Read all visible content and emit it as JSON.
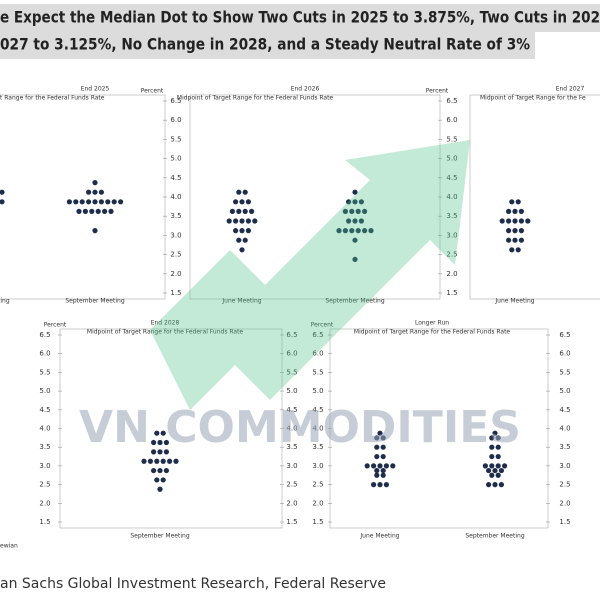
{
  "header": {
    "title_lines": [
      "e Expect the Median Dot to Show Two Cuts in 2025 to 3.875%, Two Cuts in 202",
      "027 to 3.125%, No Change in 2028, and a Steady Neutral Rate of 3%"
    ]
  },
  "watermark": "VN COMMODITIES",
  "footnote": "ewian",
  "source": "an Sachs Global Investment Research, Federal Reserve",
  "chart_data": [
    {
      "type": "dot",
      "title": "End 2025",
      "subtitle": "t Range for the Federal Funds Rate",
      "y_label": "Percent",
      "y_axis": "right",
      "color": "#1f2d4d",
      "ylim": [
        1.5,
        6.5
      ],
      "yticks": [
        6.5,
        {
          "value": 6,
          "label": "6.0"
        },
        5.5,
        {
          "value": 5,
          "label": "5.0"
        },
        4.5,
        {
          "value": 4,
          "label": "4.0"
        },
        3.5,
        {
          "value": 3,
          "label": "3.0"
        },
        2.5,
        {
          "value": 2,
          "label": "2.0"
        },
        1.5
      ],
      "series": [
        {
          "name": "eting",
          "values": [
            4.125,
            3.875
          ]
        },
        {
          "name": "September Meeting",
          "values": [
            4.375,
            4.125,
            4.125,
            4.125,
            3.875,
            3.875,
            3.875,
            3.875,
            3.875,
            3.875,
            3.875,
            3.875,
            3.875,
            3.625,
            3.625,
            3.625,
            3.625,
            3.625,
            3.625,
            3.125
          ]
        }
      ]
    },
    {
      "type": "dot",
      "title": "End 2026",
      "subtitle": "Midpoint of Target Range for the Federal Funds Rate",
      "y_label": "Percent",
      "y_axis": "right",
      "color": "#1f2d4d",
      "ylim": [
        1.5,
        6.5
      ],
      "yticks": [
        6.5,
        {
          "value": 6,
          "label": "6.0"
        },
        5.5,
        {
          "value": 5,
          "label": "5.0"
        },
        4.5,
        {
          "value": 4,
          "label": "4.0"
        },
        3.5,
        {
          "value": 3,
          "label": "3.0"
        },
        2.5,
        {
          "value": 2,
          "label": "2.0"
        },
        1.5
      ],
      "series": [
        {
          "name": "June Meeting",
          "values": [
            4.125,
            4.125,
            3.875,
            3.875,
            3.875,
            3.625,
            3.625,
            3.625,
            3.625,
            3.375,
            3.375,
            3.375,
            3.375,
            3.375,
            3.125,
            3.125,
            3.125,
            2.875,
            2.875,
            2.625
          ]
        },
        {
          "name": "September Meeting",
          "values": [
            4.125,
            3.875,
            3.875,
            3.875,
            3.625,
            3.625,
            3.625,
            3.625,
            3.375,
            3.375,
            3.375,
            3.125,
            3.125,
            3.125,
            3.125,
            3.125,
            3.125,
            2.875,
            2.375
          ]
        }
      ]
    },
    {
      "type": "dot",
      "title": "End 2027",
      "subtitle": "Midpoint of Target Range for the Fe",
      "y_axis": "none",
      "color": "#1f2d4d",
      "ylim": [
        1.5,
        6.5
      ],
      "series": [
        {
          "name": "June Meeting",
          "values": [
            3.875,
            3.875,
            3.625,
            3.625,
            3.625,
            3.375,
            3.375,
            3.375,
            3.375,
            3.375,
            3.125,
            3.125,
            3.125,
            2.875,
            2.875,
            2.875,
            2.625,
            2.625
          ]
        }
      ]
    },
    {
      "type": "dot",
      "title": "End 2028",
      "subtitle": "Midpoint of Target Range for the Federal Funds Rate",
      "y_label": "Percent",
      "y_axis": "both",
      "color": "#1f2d4d",
      "ylim": [
        1.5,
        6.5
      ],
      "yticks": [
        6.5,
        {
          "value": 6,
          "label": "6.0"
        },
        5.5,
        {
          "value": 5,
          "label": "5.0"
        },
        4.5,
        {
          "value": 4,
          "label": "4.0"
        },
        3.5,
        {
          "value": 3,
          "label": "3.0"
        },
        2.5,
        {
          "value": 2,
          "label": "2.0"
        },
        1.5
      ],
      "series": [
        {
          "name": "September Meeting",
          "values": [
            3.875,
            3.875,
            3.625,
            3.625,
            3.625,
            3.375,
            3.375,
            3.375,
            3.125,
            3.125,
            3.125,
            3.125,
            3.125,
            3.125,
            2.875,
            2.875,
            2.875,
            2.625,
            2.625,
            2.375
          ]
        }
      ]
    },
    {
      "type": "dot",
      "title": "Longer Run",
      "subtitle": "Midpoint of Target Range for the Federal Funds Rate",
      "y_label": "Percent",
      "y_axis": "both",
      "color": "#1f2d4d",
      "ylim": [
        1.5,
        6.5
      ],
      "yticks": [
        6.5,
        {
          "value": 6,
          "label": "6.0"
        },
        5.5,
        {
          "value": 5,
          "label": "5.0"
        },
        4.5,
        {
          "value": 4,
          "label": "4.0"
        },
        3.5,
        {
          "value": 3,
          "label": "3.0"
        },
        2.5,
        {
          "value": 2,
          "label": "2.0"
        },
        1.5
      ],
      "series": [
        {
          "name": "June Meeting",
          "values": [
            3.875,
            3.75,
            3.75,
            3.5,
            3.5,
            3.25,
            3.25,
            3,
            3,
            3,
            3,
            3,
            2.875,
            2.875,
            2.75,
            2.75,
            2.5,
            2.5,
            2.5
          ]
        },
        {
          "name": "September Meeting",
          "values": [
            3.875,
            3.75,
            3.75,
            3.5,
            3.5,
            3.25,
            3.25,
            3,
            3,
            3,
            3,
            2.875,
            2.875,
            2.875,
            2.75,
            2.75,
            2.5,
            2.5,
            2.5
          ]
        }
      ]
    }
  ]
}
